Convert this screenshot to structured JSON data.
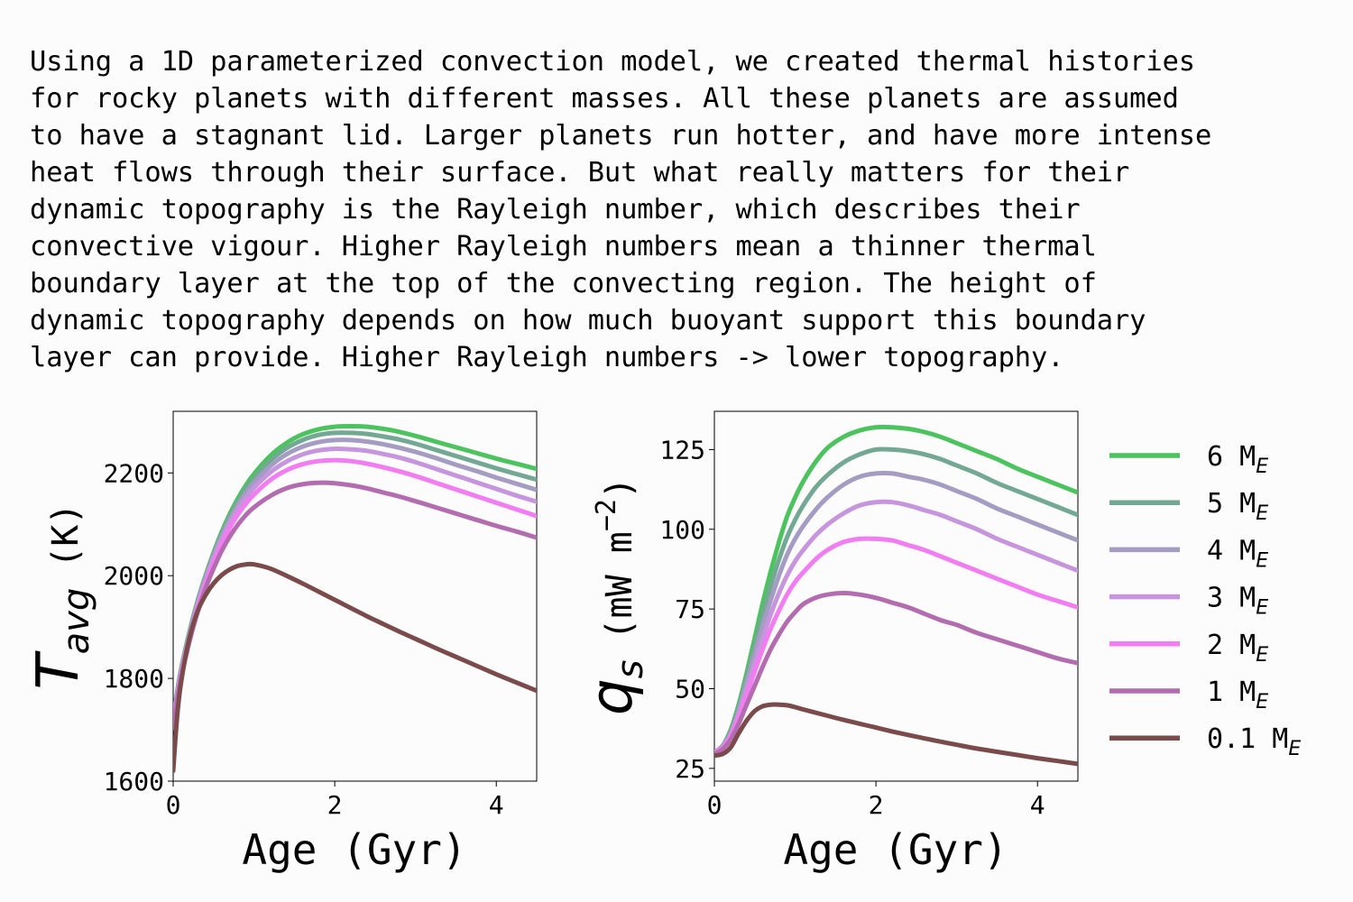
{
  "intro_text": "Using a 1D parameterized convection model, we created thermal histories\nfor rocky planets with different masses. All these planets are assumed\nto have a stagnant lid. Larger planets run hotter, and have more intense\nheat flows through their surface. But what really matters for their\ndynamic topography is the Rayleigh number, which describes their\nconvective vigour. Higher Rayleigh numbers mean a thinner thermal\nboundary layer at the top of the convecting region. The height of\ndynamic topography depends on how much buoyant support this boundary\nlayer can provide. Higher Rayleigh numbers -> lower topography.",
  "chart_data": [
    {
      "type": "line",
      "xlabel": "Age (Gyr)",
      "ylabel": "T_avg (K)",
      "ylabel_symbol": "T",
      "ylabel_subscript": "avg",
      "ylabel_unit": "(K)",
      "xlim": [
        0,
        4.5
      ],
      "ylim": [
        1600,
        2320
      ],
      "xticks": [
        0,
        2,
        4
      ],
      "yticks": [
        1600,
        1800,
        2000,
        2200
      ],
      "x": [
        0,
        0.05,
        0.1,
        0.2,
        0.3,
        0.4,
        0.5,
        0.6,
        0.7,
        0.8,
        0.9,
        1.0,
        1.2,
        1.4,
        1.6,
        1.8,
        2.0,
        2.2,
        2.4,
        2.6,
        2.8,
        3.0,
        3.25,
        3.5,
        3.75,
        4.0,
        4.25,
        4.5
      ],
      "series": [
        {
          "name": "6 M_E",
          "color": "#4cc35e",
          "values": [
            1720,
            1775,
            1820,
            1890,
            1950,
            2000,
            2045,
            2085,
            2120,
            2150,
            2176,
            2198,
            2233,
            2258,
            2275,
            2285,
            2290,
            2291,
            2290,
            2286,
            2280,
            2272,
            2261,
            2250,
            2239,
            2228,
            2218,
            2208
          ]
        },
        {
          "name": "5 M_E",
          "color": "#73a894",
          "values": [
            1718,
            1773,
            1818,
            1888,
            1948,
            1998,
            2042,
            2081,
            2115,
            2144,
            2169,
            2190,
            2224,
            2248,
            2264,
            2274,
            2278,
            2278,
            2276,
            2271,
            2265,
            2257,
            2245,
            2233,
            2221,
            2209,
            2198,
            2187
          ]
        },
        {
          "name": "4 M_E",
          "color": "#a49cc2",
          "values": [
            1715,
            1770,
            1815,
            1885,
            1945,
            1995,
            2038,
            2076,
            2109,
            2137,
            2161,
            2181,
            2213,
            2236,
            2251,
            2260,
            2264,
            2264,
            2261,
            2256,
            2249,
            2241,
            2229,
            2216,
            2204,
            2191,
            2179,
            2167
          ]
        },
        {
          "name": "3 M_E",
          "color": "#c795de",
          "values": [
            1712,
            1767,
            1812,
            1882,
            1941,
            1990,
            2033,
            2070,
            2102,
            2129,
            2152,
            2171,
            2201,
            2222,
            2236,
            2244,
            2247,
            2246,
            2243,
            2237,
            2230,
            2221,
            2208,
            2195,
            2182,
            2169,
            2156,
            2144
          ]
        },
        {
          "name": "2 M_E",
          "color": "#f27cf2",
          "values": [
            1708,
            1763,
            1808,
            1878,
            1936,
            1984,
            2026,
            2062,
            2093,
            2119,
            2140,
            2158,
            2186,
            2205,
            2217,
            2223,
            2225,
            2223,
            2218,
            2211,
            2203,
            2194,
            2181,
            2168,
            2155,
            2142,
            2129,
            2116
          ]
        },
        {
          "name": "1 M_E",
          "color": "#b46cb0",
          "values": [
            1703,
            1758,
            1803,
            1871,
            1928,
            1975,
            2014,
            2048,
            2076,
            2099,
            2118,
            2133,
            2155,
            2170,
            2178,
            2181,
            2180,
            2176,
            2170,
            2162,
            2154,
            2145,
            2133,
            2121,
            2109,
            2097,
            2086,
            2074
          ]
        },
        {
          "name": "0.1 M_E",
          "color": "#7b4a4a",
          "values": [
            1620,
            1728,
            1795,
            1878,
            1930,
            1962,
            1985,
            2001,
            2012,
            2019,
            2022,
            2022,
            2014,
            2000,
            1985,
            1969,
            1953,
            1937,
            1921,
            1906,
            1891,
            1877,
            1859,
            1842,
            1825,
            1808,
            1792,
            1776
          ]
        }
      ]
    },
    {
      "type": "line",
      "xlabel": "Age (Gyr)",
      "ylabel": "q_s (mW m^-2)",
      "ylabel_symbol": "q",
      "ylabel_subscript": "s",
      "ylabel_unit": "(mW m",
      "ylabel_unit_sup": "−2",
      "ylabel_unit_close": ")",
      "xlim": [
        0,
        4.5
      ],
      "ylim": [
        21,
        137
      ],
      "xticks": [
        0,
        2,
        4
      ],
      "yticks": [
        25,
        50,
        75,
        100,
        125
      ],
      "x": [
        0,
        0.1,
        0.2,
        0.3,
        0.4,
        0.5,
        0.6,
        0.7,
        0.8,
        0.9,
        1.0,
        1.1,
        1.25,
        1.4,
        1.6,
        1.8,
        2.0,
        2.2,
        2.4,
        2.6,
        2.8,
        3.0,
        3.25,
        3.5,
        3.75,
        4.0,
        4.25,
        4.5
      ],
      "series": [
        {
          "name": "6 M_E",
          "color": "#4cc35e",
          "values": [
            30,
            32,
            37,
            45,
            55,
            66,
            77,
            87,
            96,
            104,
            110,
            115,
            121,
            125.5,
            129,
            131,
            132,
            132,
            131.5,
            130.5,
            129,
            127,
            124.5,
            122,
            119,
            116.5,
            114,
            111.5
          ]
        },
        {
          "name": "5 M_E",
          "color": "#73a894",
          "values": [
            30,
            32,
            36.5,
            44,
            53.5,
            63.5,
            73.5,
            82.5,
            90.5,
            97.5,
            103,
            107.5,
            113,
            117,
            121,
            123.5,
            125,
            125,
            124.5,
            123.5,
            122,
            120,
            117.5,
            114.5,
            112,
            109.5,
            107,
            104.5
          ]
        },
        {
          "name": "4 M_E",
          "color": "#a49cc2",
          "values": [
            30,
            32,
            36,
            43,
            52,
            61,
            70,
            78,
            85.5,
            92,
            97,
            101,
            106,
            110,
            114,
            116.5,
            117.5,
            117.5,
            116.5,
            115.5,
            114,
            112,
            109.5,
            106.5,
            104,
            101.5,
            99,
            96.5
          ]
        },
        {
          "name": "3 M_E",
          "color": "#c795de",
          "values": [
            30,
            31.5,
            35.5,
            42,
            50,
            58,
            66,
            73.5,
            80,
            85.5,
            90,
            93.5,
            98,
            101.5,
            105,
            107.5,
            108.5,
            108.5,
            107.5,
            106,
            104.5,
            102.5,
            100,
            97,
            94.5,
            92,
            89.5,
            87
          ]
        },
        {
          "name": "2 M_E",
          "color": "#f27cf2",
          "values": [
            30,
            31.5,
            35,
            41,
            48,
            55.5,
            62.5,
            69,
            74.5,
            79.5,
            83.5,
            86.5,
            90.5,
            93.5,
            96,
            97,
            97,
            96.5,
            95,
            93.5,
            91.5,
            89.5,
            87,
            84.5,
            82,
            79.5,
            77.5,
            75.5
          ]
        },
        {
          "name": "1 M_E",
          "color": "#b46cb0",
          "values": [
            29.5,
            31,
            34,
            39,
            45,
            51,
            57,
            62.5,
            67,
            71,
            74,
            76.5,
            78.5,
            79.5,
            80,
            79.5,
            78.5,
            77,
            75.5,
            73.5,
            71.5,
            70,
            67.5,
            65.5,
            63.5,
            61.5,
            59.5,
            58
          ]
        },
        {
          "name": "0.1 M_E",
          "color": "#7b4a4a",
          "values": [
            29,
            29.5,
            31.5,
            36,
            40,
            43,
            44.5,
            45,
            45,
            44.8,
            44.2,
            43.5,
            42.5,
            41.5,
            40.2,
            39,
            37.8,
            36.6,
            35.5,
            34.4,
            33.4,
            32.4,
            31.2,
            30.2,
            29.2,
            28.2,
            27.3,
            26.4
          ]
        }
      ]
    }
  ],
  "legend": {
    "placement": "right",
    "items": [
      {
        "number": "6",
        "mass_symbol": "M",
        "mass_subscript": "E",
        "color": "#4cc35e"
      },
      {
        "number": "5",
        "mass_symbol": "M",
        "mass_subscript": "E",
        "color": "#73a894"
      },
      {
        "number": "4",
        "mass_symbol": "M",
        "mass_subscript": "E",
        "color": "#a49cc2"
      },
      {
        "number": "3",
        "mass_symbol": "M",
        "mass_subscript": "E",
        "color": "#c795de"
      },
      {
        "number": "2",
        "mass_symbol": "M",
        "mass_subscript": "E",
        "color": "#f27cf2"
      },
      {
        "number": "1",
        "mass_symbol": "M",
        "mass_subscript": "E",
        "color": "#b46cb0"
      },
      {
        "number": "0.1",
        "mass_symbol": "M",
        "mass_subscript": "E",
        "color": "#7b4a4a"
      }
    ]
  }
}
